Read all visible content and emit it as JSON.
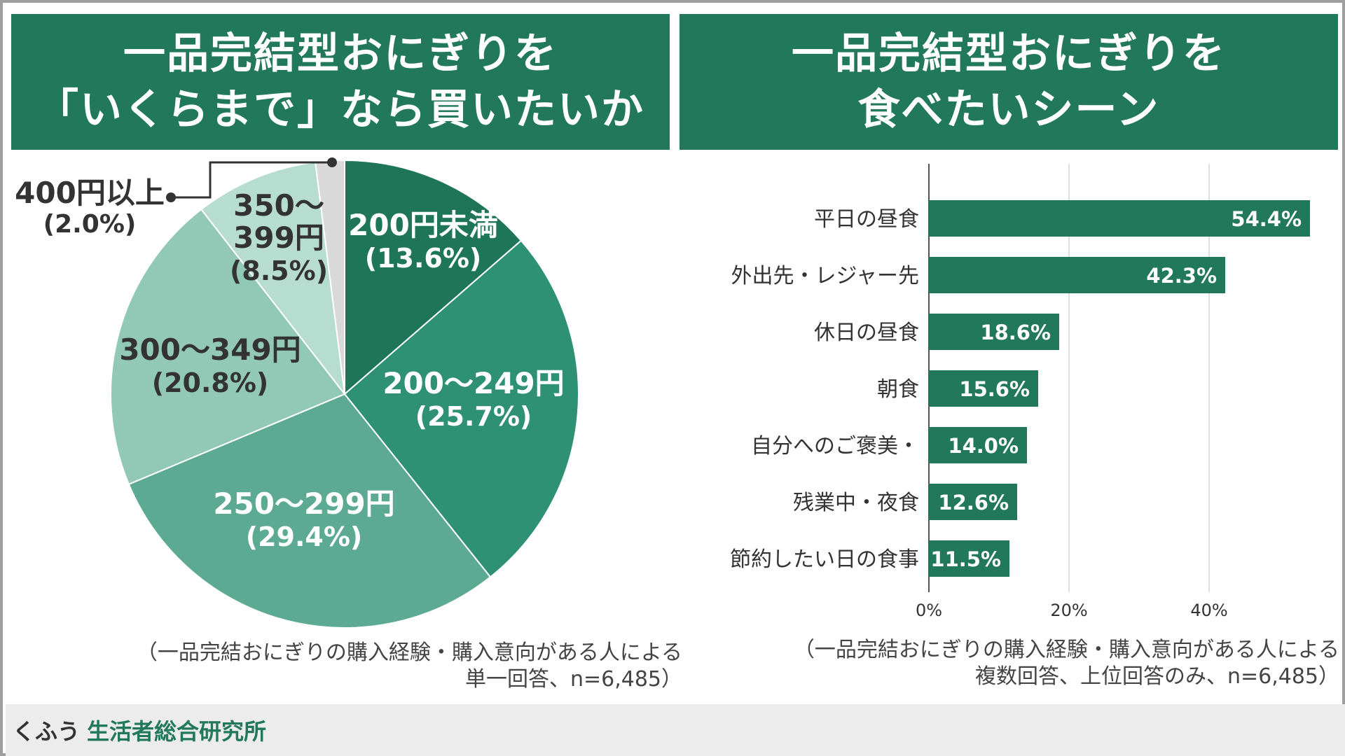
{
  "left_panel": {
    "title_line1": "一品完結型おにぎりを",
    "title_line2": "「いくらまで」なら買いたいか",
    "note_line1": "（一品完結おにぎりの購入経験・購入意向がある人による",
    "note_line2": "単一回答、n=6,485）"
  },
  "right_panel": {
    "title_line1": "一品完結型おにぎりを",
    "title_line2": "食べたいシーン",
    "note_line1": "（一品完結おにぎりの購入経験・購入意向がある人による",
    "note_line2": "複数回答、上位回答のみ、n=6,485）"
  },
  "footer": {
    "brand_part1": "くふう",
    "brand_part2": "生活者総合研究所"
  },
  "chart_data": [
    {
      "type": "pie",
      "start": "top",
      "direction": "clockwise",
      "slices": [
        {
          "label": "200円未満",
          "value": 13.6,
          "value_label": "(13.6%)",
          "color": "#1e7558"
        },
        {
          "label": "200〜249円",
          "value": 25.7,
          "value_label": "(25.7%)",
          "color": "#2f9173"
        },
        {
          "label": "250〜299円",
          "value": 29.4,
          "value_label": "(29.4%)",
          "color": "#5daa92"
        },
        {
          "label": "300〜349円",
          "value": 20.8,
          "value_label": "(20.8%)",
          "color": "#92c8b6"
        },
        {
          "label": "350〜399円",
          "label_lines": [
            "350〜",
            "399円"
          ],
          "value": 8.5,
          "value_label": "(8.5%)",
          "color": "#b7ddd0"
        },
        {
          "label": "400円以上",
          "value": 2.0,
          "value_label": "(2.0%)",
          "color": "#d9d9d9"
        }
      ]
    },
    {
      "type": "bar",
      "orientation": "horizontal",
      "categories": [
        "平日の昼食",
        "外出先・レジャー先",
        "休日の昼食",
        "朝食",
        "自分へのご褒美・",
        "残業中・夜食",
        "節約したい日の食事"
      ],
      "values": [
        54.4,
        42.3,
        18.6,
        15.6,
        14.0,
        12.6,
        11.5
      ],
      "value_labels": [
        "54.4%",
        "42.3%",
        "18.6%",
        "15.6%",
        "14.0%",
        "12.6%",
        "11.5%"
      ],
      "xlim": [
        0,
        60
      ],
      "xticks": [
        0,
        20,
        40
      ],
      "xtick_labels": [
        "0%",
        "20%",
        "40%"
      ],
      "grid": "vertical",
      "bar_color": "#22785a"
    }
  ]
}
